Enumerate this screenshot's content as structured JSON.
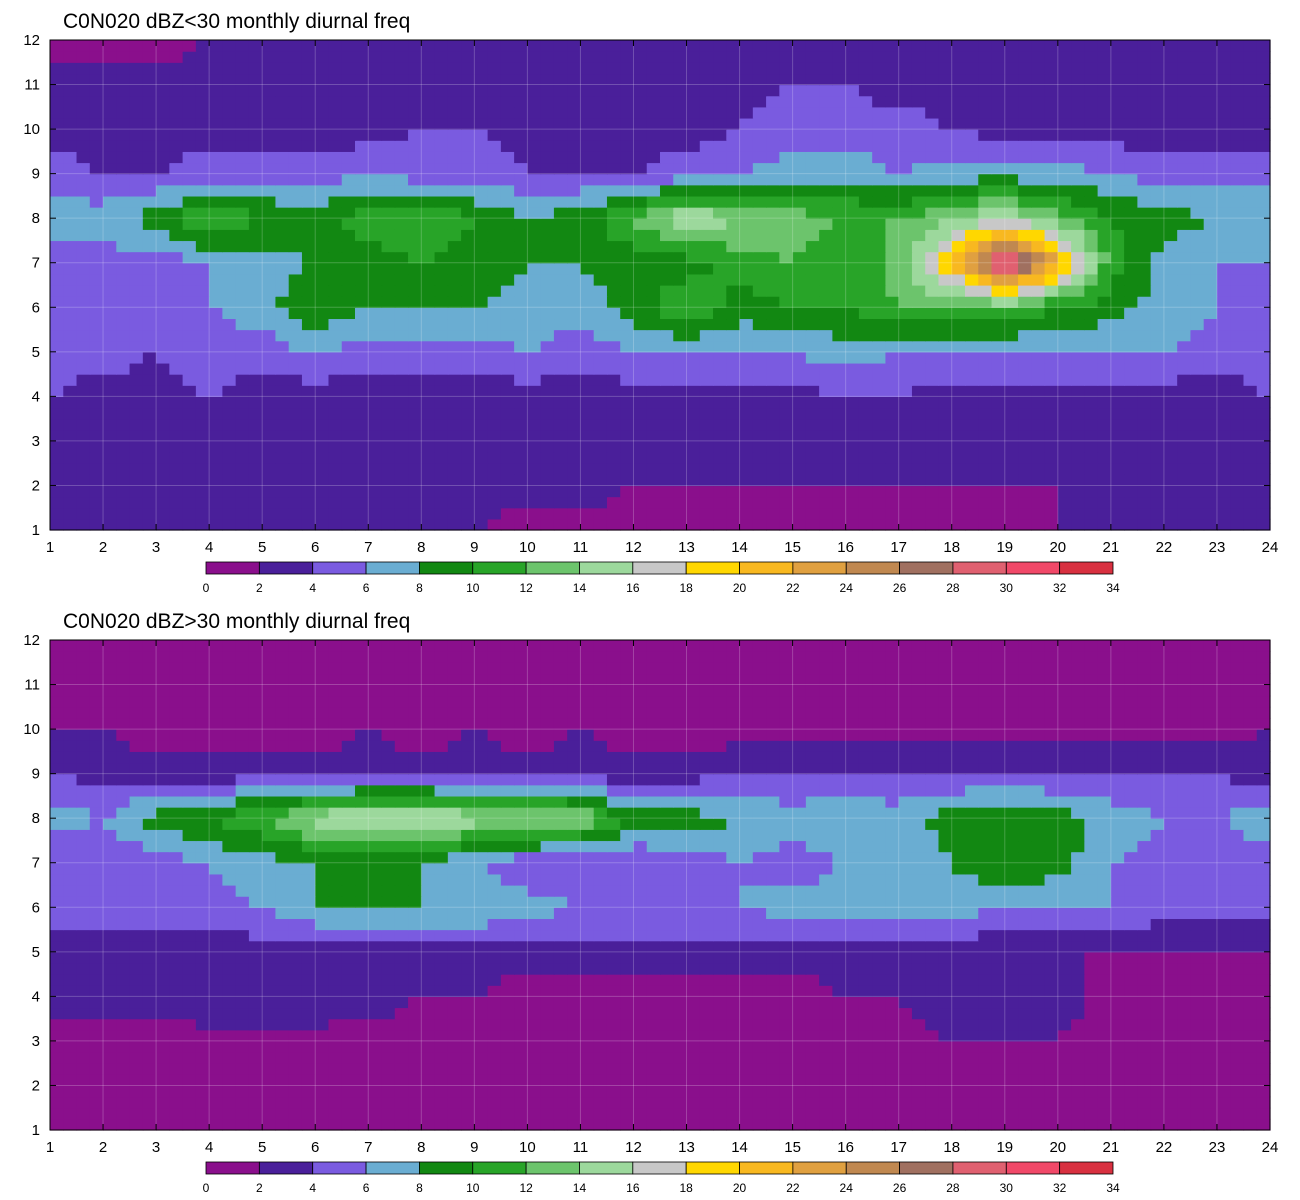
{
  "chart_data": [
    {
      "type": "heatmap",
      "subtype": "filled-contour",
      "title": "C0N020 dBZ<30 monthly diurnal freq",
      "xlabel": "",
      "ylabel": "",
      "xlim": [
        1,
        24
      ],
      "ylim": [
        1,
        12
      ],
      "x_ticks": [
        "1",
        "2",
        "3",
        "4",
        "5",
        "6",
        "7",
        "8",
        "9",
        "10",
        "11",
        "12",
        "13",
        "14",
        "15",
        "16",
        "17",
        "18",
        "19",
        "20",
        "21",
        "22",
        "23",
        "24"
      ],
      "y_ticks": [
        "1",
        "2",
        "3",
        "4",
        "5",
        "6",
        "7",
        "8",
        "9",
        "10",
        "11",
        "12"
      ],
      "grid": true,
      "colorbar": {
        "position": "bottom",
        "levels": [
          "0",
          "2",
          "4",
          "6",
          "8",
          "10",
          "12",
          "14",
          "16",
          "18",
          "20",
          "22",
          "24",
          "26",
          "28",
          "30",
          "32",
          "34"
        ],
        "colors": [
          "#8a0f8c",
          "#4a1f9a",
          "#7a5be0",
          "#6aadd2",
          "#128812",
          "#28a428",
          "#6cc46c",
          "#9cd89c",
          "#c8c8c8",
          "#ffd700",
          "#f8b820",
          "#e0a040",
          "#c08850",
          "#a07060",
          "#e06070",
          "#f04868",
          "#d83040"
        ]
      },
      "approx_values": {
        "x": [
          1,
          2,
          3,
          4,
          5,
          6,
          7,
          8,
          9,
          10,
          11,
          12,
          13,
          14,
          15,
          16,
          17,
          18,
          19,
          20,
          21,
          22,
          23,
          24
        ],
        "y": [
          1,
          2,
          3,
          4,
          5,
          6,
          7,
          8,
          9,
          10,
          11,
          12
        ],
        "z": [
          [
            2,
            2,
            3,
            3,
            2,
            2,
            2,
            2,
            2,
            1,
            1,
            1,
            1,
            1,
            1,
            1,
            1,
            1,
            1,
            2,
            2,
            2,
            2,
            2
          ],
          [
            2,
            2,
            2,
            3,
            2,
            2,
            2,
            2,
            3,
            3,
            3,
            2,
            2,
            2,
            2,
            2,
            2,
            2,
            2,
            2,
            2,
            2,
            2,
            2
          ],
          [
            3,
            3,
            3,
            3,
            3,
            3,
            2,
            3,
            3,
            3,
            2,
            2,
            2,
            2,
            2,
            3,
            3,
            3,
            2,
            2,
            2,
            2,
            2,
            2
          ],
          [
            4,
            3,
            3,
            4,
            3,
            3,
            3,
            3,
            3,
            3,
            2,
            3,
            3,
            3,
            3,
            4,
            4,
            3,
            3,
            3,
            3,
            3,
            3,
            4
          ],
          [
            5,
            5,
            4,
            5,
            5,
            6,
            5,
            5,
            5,
            6,
            5,
            6,
            6,
            6,
            6,
            7,
            6,
            6,
            6,
            6,
            6,
            6,
            5,
            5
          ],
          [
            6,
            6,
            6,
            6,
            7,
            10,
            8,
            8,
            8,
            7,
            7,
            9,
            12,
            9,
            10,
            10,
            12,
            12,
            12,
            10,
            9,
            7,
            6,
            5
          ],
          [
            5,
            5,
            5,
            6,
            7,
            8,
            9,
            10,
            9,
            8,
            8,
            9,
            9,
            11,
            12,
            10,
            13,
            20,
            32,
            22,
            11,
            7,
            6,
            6
          ],
          [
            7,
            7,
            9,
            12,
            10,
            9,
            11,
            12,
            10,
            8,
            9,
            12,
            16,
            14,
            13,
            12,
            12,
            14,
            16,
            13,
            10,
            9,
            8,
            8
          ],
          [
            5,
            4,
            4,
            5,
            5,
            5,
            6,
            5,
            5,
            4,
            4,
            4,
            5,
            6,
            7,
            7,
            6,
            7,
            7,
            7,
            6,
            5,
            5,
            5
          ],
          [
            3,
            3,
            3,
            3,
            3,
            3,
            3,
            4,
            4,
            3,
            3,
            3,
            3,
            4,
            5,
            5,
            5,
            4,
            3,
            3,
            3,
            3,
            3,
            3
          ],
          [
            3,
            3,
            3,
            3,
            3,
            3,
            3,
            3,
            3,
            2,
            2,
            2,
            3,
            3,
            4,
            4,
            3,
            3,
            2,
            2,
            2,
            2,
            2,
            2
          ],
          [
            1,
            1,
            1,
            2,
            2,
            3,
            3,
            3,
            3,
            3,
            3,
            3,
            3,
            3,
            3,
            3,
            3,
            3,
            2,
            2,
            2,
            2,
            2,
            2
          ]
        ]
      }
    },
    {
      "type": "heatmap",
      "subtype": "filled-contour",
      "title": "C0N020 dBZ>30 monthly diurnal freq",
      "xlabel": "",
      "ylabel": "",
      "xlim": [
        1,
        24
      ],
      "ylim": [
        1,
        12
      ],
      "x_ticks": [
        "1",
        "2",
        "3",
        "4",
        "5",
        "6",
        "7",
        "8",
        "9",
        "10",
        "11",
        "12",
        "13",
        "14",
        "15",
        "16",
        "17",
        "18",
        "19",
        "20",
        "21",
        "22",
        "23",
        "24"
      ],
      "y_ticks": [
        "1",
        "2",
        "3",
        "4",
        "5",
        "6",
        "7",
        "8",
        "9",
        "10",
        "11",
        "12"
      ],
      "grid": true,
      "colorbar": {
        "position": "bottom",
        "levels": [
          "0",
          "2",
          "4",
          "6",
          "8",
          "10",
          "12",
          "14",
          "16",
          "18",
          "20",
          "22",
          "24",
          "26",
          "28",
          "30",
          "32",
          "34"
        ],
        "colors": [
          "#8a0f8c",
          "#4a1f9a",
          "#7a5be0",
          "#6aadd2",
          "#128812",
          "#28a428",
          "#6cc46c",
          "#9cd89c",
          "#c8c8c8",
          "#ffd700",
          "#f8b820",
          "#e0a040",
          "#c08850",
          "#a07060",
          "#e06070",
          "#f04868",
          "#d83040"
        ]
      },
      "approx_values": {
        "x": [
          1,
          2,
          3,
          4,
          5,
          6,
          7,
          8,
          9,
          10,
          11,
          12,
          13,
          14,
          15,
          16,
          17,
          18,
          19,
          20,
          21,
          22,
          23,
          24
        ],
        "y": [
          1,
          2,
          3,
          4,
          5,
          6,
          7,
          8,
          9,
          10,
          11,
          12
        ],
        "z": [
          [
            1,
            1,
            1,
            1,
            1,
            1,
            1,
            1,
            1,
            1,
            1,
            1,
            1,
            1,
            1,
            1,
            1,
            1,
            1,
            1,
            1,
            1,
            1,
            1
          ],
          [
            1,
            1,
            1,
            1,
            1,
            1,
            1,
            1,
            1,
            1,
            1,
            1,
            1,
            1,
            1,
            1,
            1,
            1,
            1,
            1,
            1,
            1,
            1,
            1
          ],
          [
            1,
            1,
            1,
            1,
            1,
            1,
            1,
            1,
            1,
            1,
            1,
            1,
            1,
            1,
            1,
            1,
            1,
            2,
            2,
            2,
            1,
            1,
            1,
            1
          ],
          [
            3,
            3,
            3,
            4,
            4,
            4,
            3,
            2,
            2,
            1,
            1,
            1,
            1,
            1,
            1,
            2,
            2,
            3,
            3,
            3,
            1,
            1,
            1,
            1
          ],
          [
            3,
            3,
            3,
            3,
            3,
            3,
            3,
            3,
            3,
            3,
            3,
            3,
            3,
            3,
            3,
            3,
            3,
            3,
            2,
            2,
            2,
            2,
            2,
            2
          ],
          [
            5,
            5,
            5,
            5,
            6,
            8,
            8,
            8,
            8,
            7,
            6,
            6,
            6,
            6,
            7,
            7,
            7,
            7,
            6,
            6,
            6,
            5,
            5,
            5
          ],
          [
            4,
            4,
            5,
            6,
            7,
            8,
            8,
            8,
            6,
            4,
            4,
            4,
            5,
            6,
            5,
            6,
            6,
            8,
            10,
            9,
            6,
            5,
            5,
            5
          ],
          [
            7,
            6,
            9,
            10,
            12,
            15,
            17,
            17,
            15,
            15,
            14,
            9,
            9,
            8,
            7,
            8,
            7,
            9,
            10,
            9,
            7,
            6,
            6,
            7
          ],
          [
            4,
            3,
            3,
            3,
            3,
            3,
            3,
            3,
            3,
            3,
            3,
            3,
            3,
            4,
            4,
            4,
            4,
            4,
            4,
            4,
            4,
            4,
            4,
            3
          ],
          [
            2,
            2,
            1,
            1,
            1,
            1,
            2,
            1,
            2,
            1,
            2,
            1,
            1,
            1,
            1,
            1,
            1,
            1,
            1,
            1,
            1,
            1,
            1,
            2
          ],
          [
            1,
            1,
            1,
            1,
            1,
            1,
            1,
            1,
            2,
            1,
            1,
            1,
            1,
            1,
            1,
            1,
            1,
            1,
            1,
            1,
            1,
            1,
            1,
            1
          ],
          [
            1,
            1,
            1,
            1,
            1,
            1,
            1,
            1,
            1,
            1,
            1,
            1,
            1,
            1,
            1,
            1,
            1,
            1,
            1,
            1,
            1,
            1,
            1,
            1
          ]
        ]
      }
    }
  ]
}
